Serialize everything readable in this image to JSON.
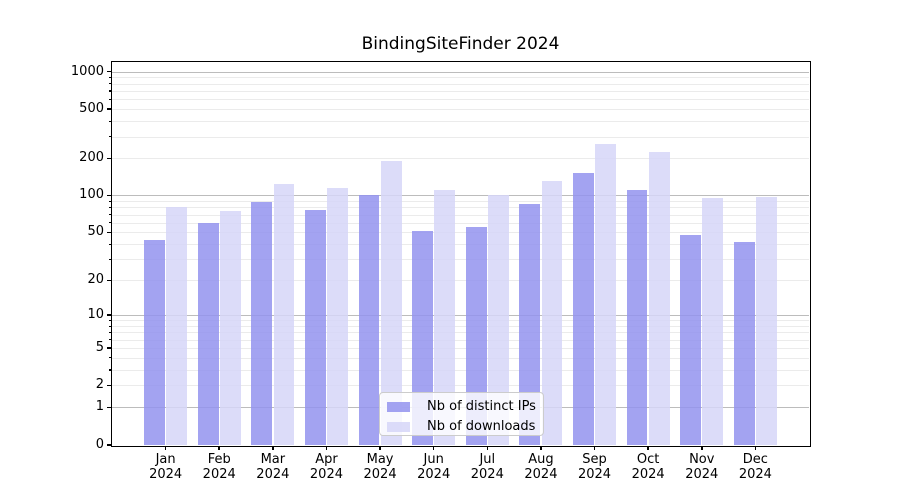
{
  "title": "BindingSiteFinder 2024",
  "chart_data": {
    "type": "bar",
    "title": "BindingSiteFinder 2024",
    "categories": [
      "Jan",
      "Feb",
      "Mar",
      "Apr",
      "May",
      "Jun",
      "Jul",
      "Aug",
      "Sep",
      "Oct",
      "Nov",
      "Dec"
    ],
    "year": "2024",
    "series": [
      {
        "name": "Nb of distinct IPs",
        "color": "#9393ee",
        "alpha": 0.85,
        "values": [
          43,
          60,
          89,
          76,
          100,
          51,
          55,
          85,
          152,
          110,
          48,
          42
        ]
      },
      {
        "name": "Nb of downloads",
        "color": "#d6d6f8",
        "alpha": 0.85,
        "values": [
          80,
          75,
          125,
          115,
          190,
          110,
          100,
          130,
          262,
          225,
          96,
          98
        ]
      }
    ],
    "xlabel": "",
    "ylabel": "",
    "yscale": "symlog(log1p)",
    "ylim": [
      0,
      1200
    ],
    "yticks": [
      0,
      1,
      2,
      5,
      10,
      20,
      50,
      100,
      200,
      500,
      1000
    ],
    "major_grid_values": [
      1,
      10,
      100,
      1000
    ],
    "grid": "horizontal major + minor",
    "legend_position": "inside lower center-left"
  },
  "colors": {
    "background": "#ffffff",
    "axis": "#000000",
    "major_grid": "#bcbcbc",
    "minor_grid": "#ebebeb",
    "bar_ips": "#9393ee",
    "bar_downloads": "#d6d6f8"
  }
}
